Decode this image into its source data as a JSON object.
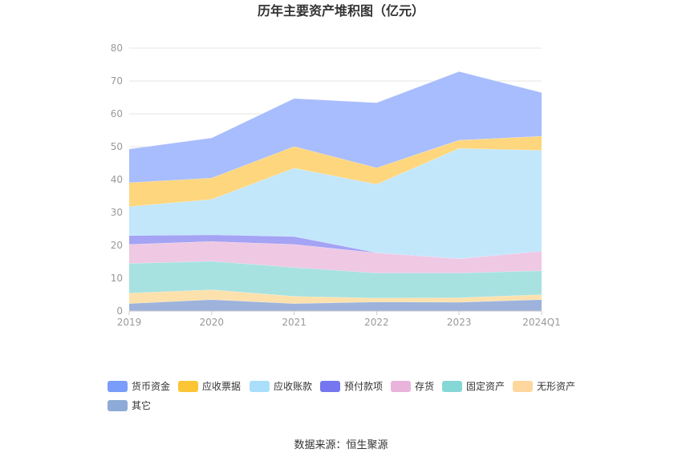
{
  "chart_data": {
    "type": "area",
    "stacked": true,
    "title": "历年主要资产堆积图（亿元）",
    "categories": [
      "2019",
      "2020",
      "2021",
      "2022",
      "2023",
      "2024Q1"
    ],
    "ylim": [
      0,
      80
    ],
    "yticks": [
      0,
      10,
      20,
      30,
      40,
      50,
      60,
      70,
      80
    ],
    "grid": true,
    "legend_position": "bottom",
    "series": [
      {
        "name": "其它",
        "color": "#9db3dc",
        "values": [
          2.3,
          3.5,
          2.3,
          2.8,
          2.7,
          3.5
        ]
      },
      {
        "name": "无形资产",
        "color": "#fde1ad",
        "values": [
          3.2,
          3.0,
          2.2,
          1.2,
          1.4,
          1.5
        ]
      },
      {
        "name": "固定资产",
        "color": "#a7e2e1",
        "values": [
          9.0,
          8.7,
          8.8,
          7.6,
          7.5,
          7.3
        ]
      },
      {
        "name": "存货",
        "color": "#efc8e3",
        "values": [
          5.8,
          6.0,
          7.0,
          6.1,
          4.3,
          5.9
        ]
      },
      {
        "name": "预付款项",
        "color": "#a4a3f4",
        "values": [
          2.7,
          2.0,
          2.4,
          0.1,
          0.1,
          0.1
        ]
      },
      {
        "name": "应收账款",
        "color": "#c2e7fb",
        "values": [
          8.8,
          10.8,
          20.8,
          20.8,
          33.5,
          30.6
        ]
      },
      {
        "name": "应收票据",
        "color": "#fed67e",
        "values": [
          7.3,
          6.5,
          6.6,
          5.0,
          2.5,
          4.3
        ]
      },
      {
        "name": "货币资金",
        "color": "#a8bdfd",
        "values": [
          10.2,
          12.2,
          14.6,
          19.8,
          20.9,
          13.3
        ]
      }
    ],
    "legend": [
      {
        "name": "货币资金",
        "color": "#7a9dfa"
      },
      {
        "name": "应收票据",
        "color": "#fcc536"
      },
      {
        "name": "应收账款",
        "color": "#a9dffa"
      },
      {
        "name": "预付款项",
        "color": "#7477ef"
      },
      {
        "name": "存货",
        "color": "#e9b4dc"
      },
      {
        "name": "固定资产",
        "color": "#86d8d6"
      },
      {
        "name": "无形资产",
        "color": "#fdd79e"
      },
      {
        "name": "其它",
        "color": "#8eabd7"
      }
    ]
  },
  "source_label": "数据来源：恒生聚源"
}
